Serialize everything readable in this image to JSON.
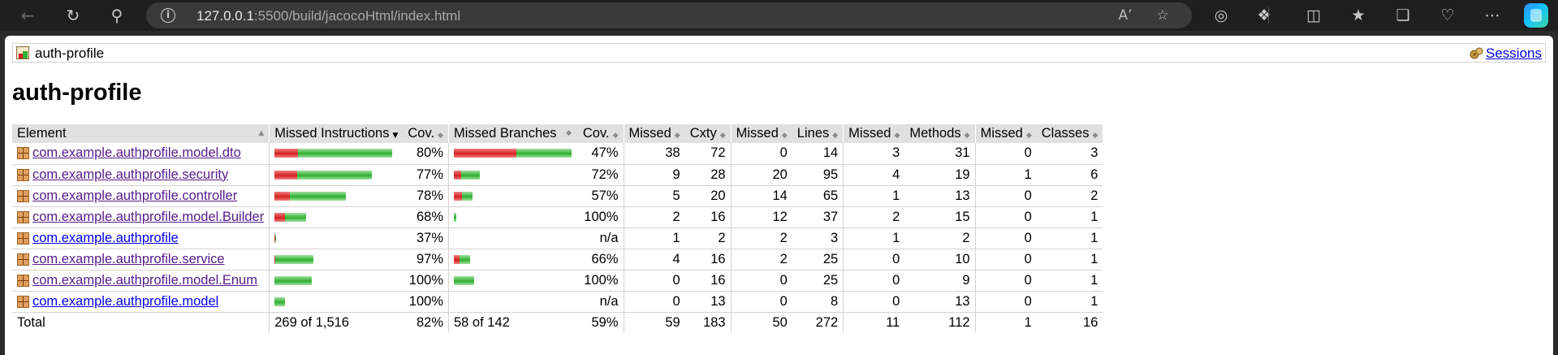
{
  "browser": {
    "url_host": "127.0.0.1",
    "url_rest": ":5500/build/jacocoHtml/index.html",
    "icons": [
      "back-arrow-icon",
      "refresh-icon",
      "search-icon",
      "site-info-icon",
      "read-aloud-icon",
      "favorite-star-icon",
      "browser-extension-icon",
      "extensions-icon",
      "split-screen-icon",
      "favorites-icon",
      "collections-icon",
      "browser-essentials-icon",
      "more-icon",
      "copilot-icon"
    ]
  },
  "breadcrumb": {
    "title": "auth-profile",
    "sessions_label": "Sessions"
  },
  "page_title": "auth-profile",
  "table": {
    "headers": [
      "Element",
      "Missed Instructions",
      "Cov.",
      "Missed Branches",
      "Cov.",
      "Missed",
      "Cxty",
      "Missed",
      "Lines",
      "Missed",
      "Methods",
      "Missed",
      "Classes"
    ],
    "rows": [
      {
        "name": "com.example.authprofile.model.dto",
        "visited": true,
        "instr_missed_frac": 0.2,
        "instr_scale": 1.0,
        "instr_cov": "80%",
        "branch_missed_frac": 0.53,
        "branch_scale": 1.0,
        "branch_cov": "47%",
        "cx_missed": "38",
        "cxty": "72",
        "lines_missed": "0",
        "lines": "14",
        "meth_missed": "3",
        "methods": "31",
        "cls_missed": "0",
        "classes": "3"
      },
      {
        "name": "com.example.authprofile.security",
        "visited": true,
        "instr_missed_frac": 0.23,
        "instr_scale": 0.83,
        "instr_cov": "77%",
        "branch_missed_frac": 0.28,
        "branch_scale": 0.22,
        "branch_cov": "72%",
        "cx_missed": "9",
        "cxty": "28",
        "lines_missed": "20",
        "lines": "95",
        "meth_missed": "4",
        "methods": "19",
        "cls_missed": "1",
        "classes": "6"
      },
      {
        "name": "com.example.authprofile.controller",
        "visited": true,
        "instr_missed_frac": 0.22,
        "instr_scale": 0.61,
        "instr_cov": "78%",
        "branch_missed_frac": 0.43,
        "branch_scale": 0.16,
        "branch_cov": "57%",
        "cx_missed": "5",
        "cxty": "20",
        "lines_missed": "14",
        "lines": "65",
        "meth_missed": "1",
        "methods": "13",
        "cls_missed": "0",
        "classes": "2"
      },
      {
        "name": "com.example.authprofile.model.Builder",
        "visited": true,
        "instr_missed_frac": 0.32,
        "instr_scale": 0.27,
        "instr_cov": "68%",
        "branch_missed_frac": 0.0,
        "branch_scale": 0.02,
        "branch_cov": "100%",
        "cx_missed": "2",
        "cxty": "16",
        "lines_missed": "12",
        "lines": "37",
        "meth_missed": "2",
        "methods": "15",
        "cls_missed": "0",
        "classes": "1"
      },
      {
        "name": "com.example.authprofile",
        "visited": false,
        "instr_missed_frac": 0.63,
        "instr_scale": 0.013,
        "instr_cov": "37%",
        "branch_missed_frac": 0.0,
        "branch_scale": 0.0,
        "branch_cov": "n/a",
        "cx_missed": "1",
        "cxty": "2",
        "lines_missed": "2",
        "lines": "3",
        "meth_missed": "1",
        "methods": "2",
        "cls_missed": "0",
        "classes": "1"
      },
      {
        "name": "com.example.authprofile.service",
        "visited": true,
        "instr_missed_frac": 0.03,
        "instr_scale": 0.33,
        "instr_cov": "97%",
        "branch_missed_frac": 0.34,
        "branch_scale": 0.14,
        "branch_cov": "66%",
        "cx_missed": "4",
        "cxty": "16",
        "lines_missed": "2",
        "lines": "25",
        "meth_missed": "0",
        "methods": "10",
        "cls_missed": "0",
        "classes": "1"
      },
      {
        "name": "com.example.authprofile.model.Enum",
        "visited": true,
        "instr_missed_frac": 0.0,
        "instr_scale": 0.32,
        "instr_cov": "100%",
        "branch_missed_frac": 0.0,
        "branch_scale": 0.17,
        "branch_cov": "100%",
        "cx_missed": "0",
        "cxty": "16",
        "lines_missed": "0",
        "lines": "25",
        "meth_missed": "0",
        "methods": "9",
        "cls_missed": "0",
        "classes": "1"
      },
      {
        "name": "com.example.authprofile.model",
        "visited": false,
        "instr_missed_frac": 0.0,
        "instr_scale": 0.09,
        "instr_cov": "100%",
        "branch_missed_frac": 0.0,
        "branch_scale": 0.0,
        "branch_cov": "n/a",
        "cx_missed": "0",
        "cxty": "13",
        "lines_missed": "0",
        "lines": "8",
        "meth_missed": "0",
        "methods": "13",
        "cls_missed": "0",
        "classes": "1"
      }
    ],
    "total": {
      "label": "Total",
      "instr": "269 of 1,516",
      "instr_cov": "82%",
      "branch": "58 of 142",
      "branch_cov": "59%",
      "cx_missed": "59",
      "cxty": "183",
      "lines_missed": "50",
      "lines": "272",
      "meth_missed": "11",
      "methods": "112",
      "cls_missed": "1",
      "classes": "16"
    }
  },
  "colors": {
    "missed": "#d42020",
    "covered": "#30b030",
    "header_bg": "#e0e0e0",
    "link_visited": "#551a8b",
    "link": "#0000ee"
  }
}
